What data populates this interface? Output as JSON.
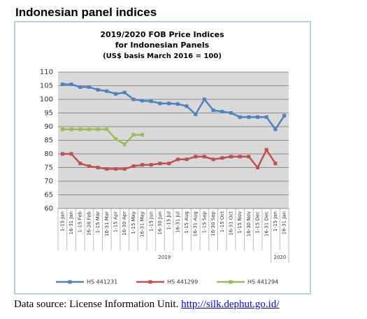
{
  "heading": "Indonesian panel indices",
  "chart_data": {
    "type": "line",
    "title": [
      "2019/2020 FOB Price Indices",
      "for Indonesian Panels",
      "(US$ basis March 2016 = 100)"
    ],
    "category_groups": [
      {
        "label": "2019",
        "categories": [
          "1-15 Jan",
          "16-31 Jan",
          "1-15 Feb",
          "16-28 Feb",
          "1-15 Mar",
          "16-31 Mar",
          "1-15 Apr",
          "16-30 Apr",
          "1-15 May",
          "16-31 May",
          "1-15 Jun",
          "16-30 Jun",
          "1-15 Jul",
          "16-31 Jul",
          "1-15 Aug",
          "16-31 Aug",
          "1-15 Sep",
          "16-30 Sep",
          "1-15 Oct",
          "16-31 Oct",
          "1-15 Nov",
          "16-30 Nov",
          "1-15 Dec",
          "16-31 Dec"
        ]
      },
      {
        "label": "2020",
        "categories": [
          "1-15 Jan",
          "16-31 Jan"
        ]
      }
    ],
    "series": [
      {
        "name": "HS 441231",
        "color": "#4f81bd",
        "values": [
          105.5,
          105.5,
          104.5,
          104.5,
          103.5,
          103,
          102,
          102.5,
          100,
          99.5,
          99.3,
          98.5,
          98.5,
          98.3,
          97.5,
          94.5,
          100,
          96,
          95.5,
          95,
          93.5,
          93.5,
          93.5,
          93.5,
          89,
          94
        ]
      },
      {
        "name": "HS 441299",
        "color": "#c0504d",
        "values": [
          80,
          80,
          76.5,
          75.5,
          75,
          74.5,
          74.5,
          74.5,
          75.5,
          76,
          76,
          76.5,
          76.5,
          78,
          78,
          79,
          79,
          78,
          78.5,
          79,
          79,
          79,
          75,
          81.5,
          76.5,
          null
        ]
      },
      {
        "name": "HS 441294",
        "color": "#9bbb59",
        "values": [
          89,
          89,
          89,
          89,
          89,
          89,
          85.5,
          83.5,
          87,
          87,
          null,
          null,
          null,
          null,
          null,
          null,
          null,
          null,
          null,
          null,
          null,
          null,
          null,
          null,
          null,
          null
        ]
      }
    ],
    "ylim": [
      60,
      110
    ],
    "yticks": [
      60,
      65,
      70,
      75,
      80,
      85,
      90,
      95,
      100,
      105,
      110
    ],
    "grid": true
  },
  "source": {
    "text": "Data source: License Information Unit.",
    "link": "http://silk.dephut.go.id/"
  }
}
